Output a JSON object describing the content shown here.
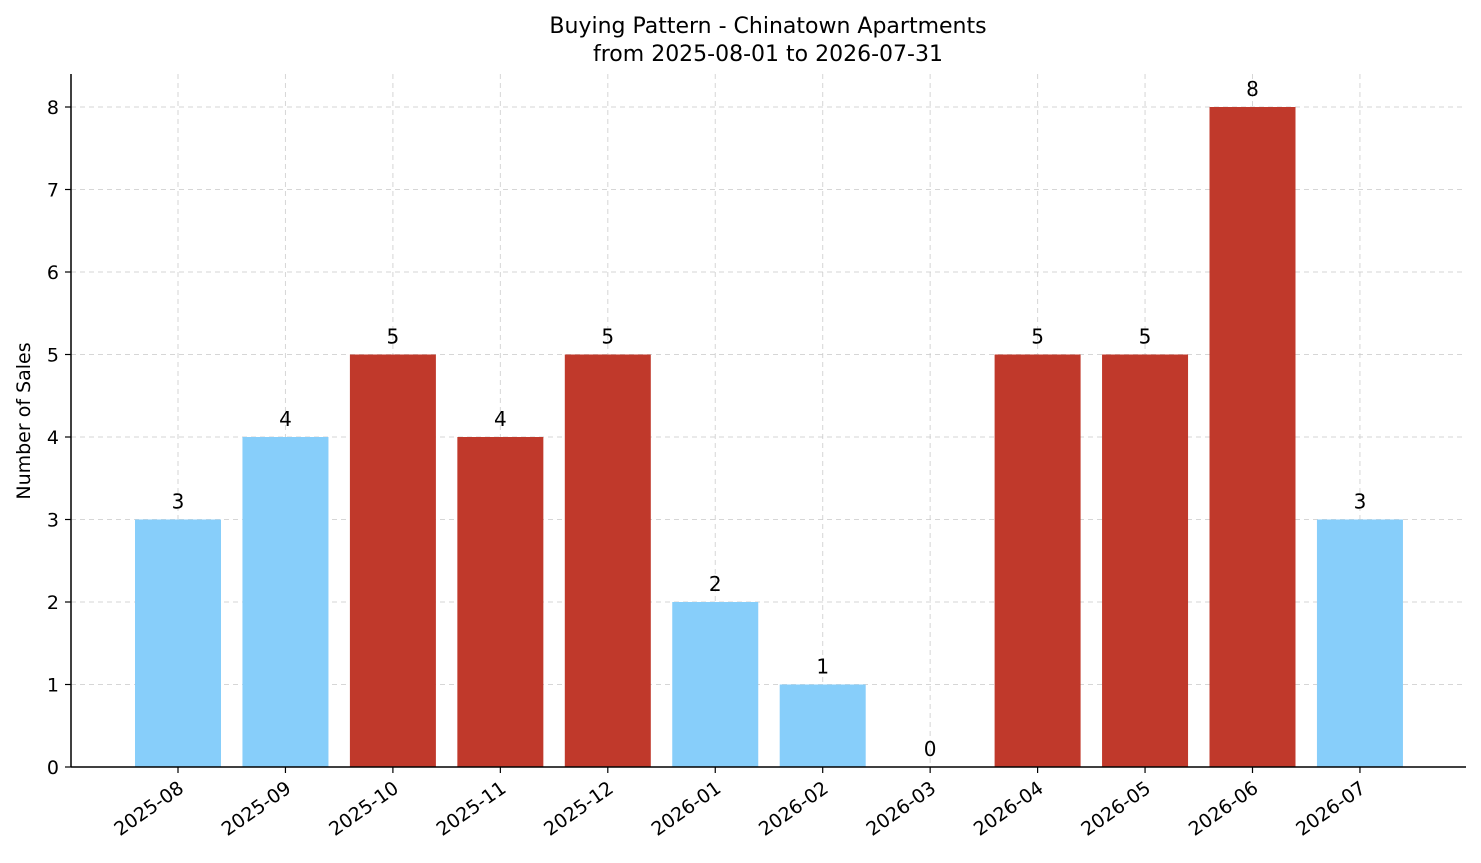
{
  "chart_data": {
    "type": "bar",
    "title": "Buying Pattern - Chinatown Apartments",
    "subtitle": "from 2025-08-01 to 2026-07-31",
    "xlabel": "",
    "ylabel": "Number of Sales",
    "categories": [
      "2025-08",
      "2025-09",
      "2025-10",
      "2025-11",
      "2025-12",
      "2026-01",
      "2026-02",
      "2026-03",
      "2026-04",
      "2026-05",
      "2026-06",
      "2026-07"
    ],
    "values": [
      3,
      4,
      5,
      4,
      5,
      2,
      1,
      0,
      5,
      5,
      8,
      3
    ],
    "bar_colors": [
      "#87CEFA",
      "#87CEFA",
      "#C0392B",
      "#C0392B",
      "#C0392B",
      "#87CEFA",
      "#87CEFA",
      "#87CEFA",
      "#C0392B",
      "#C0392B",
      "#C0392B",
      "#87CEFA"
    ],
    "ylim": [
      0,
      8.4
    ],
    "yticks": [
      0,
      1,
      2,
      3,
      4,
      5,
      6,
      7,
      8
    ],
    "grid": true,
    "legend": "none",
    "data_labels": true
  }
}
